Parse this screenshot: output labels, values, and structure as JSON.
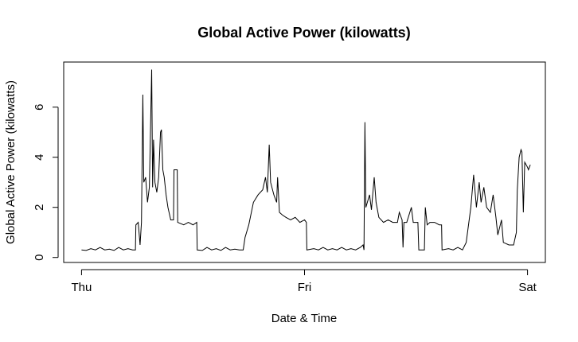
{
  "chart_data": {
    "type": "line",
    "title": "Global Active Power (kilowatts)",
    "x_label": "Date & Time",
    "y_label": "Global Active Power (kilowatts)",
    "color": "#000000",
    "xlim": [
      -1.92,
      49.92
    ],
    "xticks": [
      {
        "value": 0,
        "label": "Thu"
      },
      {
        "value": 24,
        "label": "Fri"
      },
      {
        "value": 48,
        "label": "Sat"
      }
    ],
    "ylim": [
      -0.2,
      7.8
    ],
    "yticks": [
      0,
      2,
      4,
      6
    ],
    "x": [
      0,
      0.5,
      1,
      1.5,
      2,
      2.5,
      3,
      3.5,
      4,
      4.5,
      5,
      5.5,
      5.8,
      5.85,
      6.1,
      6.3,
      6.45,
      6.6,
      6.7,
      6.9,
      7.1,
      7.3,
      7.55,
      7.65,
      7.75,
      7.9,
      8.1,
      8.3,
      8.5,
      8.6,
      8.75,
      8.9,
      9.1,
      9.3,
      9.6,
      9.9,
      9.95,
      10.3,
      10.35,
      11,
      11.5,
      12,
      12.4,
      12.45,
      13,
      13.5,
      14,
      14.5,
      15,
      15.5,
      16,
      16.5,
      17,
      17.4,
      17.6,
      18,
      18.5,
      19,
      19.5,
      19.8,
      20,
      20.2,
      20.35,
      20.7,
      21,
      21.1,
      21.3,
      21.6,
      22,
      22.5,
      23,
      23.5,
      24,
      24.2,
      24.25,
      25,
      25.5,
      26,
      26.5,
      27,
      27.5,
      28,
      28.5,
      29,
      29.5,
      30,
      30.3,
      30.4,
      30.5,
      30.6,
      31,
      31.2,
      31.5,
      31.7,
      32,
      32.5,
      33,
      33.5,
      34,
      34.2,
      34.5,
      34.6,
      34.7,
      35,
      35.5,
      35.7,
      36.2,
      36.3,
      36.9,
      37,
      37.2,
      37.5,
      38,
      38.5,
      38.75,
      38.8,
      39.5,
      40,
      40.5,
      41,
      41.4,
      41.9,
      42.2,
      42.5,
      42.8,
      43,
      43.3,
      43.6,
      44,
      44.3,
      44.6,
      44.8,
      45.2,
      45.4,
      46,
      46.5,
      46.8,
      46.9,
      47.1,
      47.3,
      47.4,
      47.55,
      47.7,
      48,
      48.1,
      48.3
    ],
    "values": [
      0.3,
      0.28,
      0.35,
      0.3,
      0.4,
      0.3,
      0.33,
      0.28,
      0.4,
      0.3,
      0.35,
      0.3,
      0.3,
      1.3,
      1.4,
      0.5,
      1.4,
      6.5,
      3.0,
      3.2,
      2.2,
      2.8,
      7.5,
      2.8,
      4.7,
      3.0,
      2.6,
      3.2,
      5.0,
      5.1,
      3.5,
      3.2,
      2.5,
      2.0,
      1.5,
      1.5,
      3.5,
      3.5,
      1.4,
      1.3,
      1.4,
      1.3,
      1.4,
      0.3,
      0.28,
      0.4,
      0.3,
      0.35,
      0.28,
      0.4,
      0.3,
      0.33,
      0.3,
      0.3,
      0.8,
      1.3,
      2.2,
      2.5,
      2.7,
      3.2,
      2.6,
      4.5,
      3.0,
      2.5,
      2.2,
      3.2,
      1.8,
      1.7,
      1.6,
      1.5,
      1.6,
      1.4,
      1.5,
      1.4,
      0.3,
      0.35,
      0.3,
      0.4,
      0.3,
      0.35,
      0.3,
      0.4,
      0.3,
      0.35,
      0.3,
      0.4,
      0.5,
      0.3,
      5.4,
      2.0,
      2.5,
      1.9,
      3.2,
      2.2,
      1.6,
      1.4,
      1.5,
      1.4,
      1.4,
      1.8,
      1.5,
      0.4,
      1.4,
      1.4,
      2.0,
      1.4,
      1.4,
      0.3,
      0.3,
      2.0,
      1.3,
      1.4,
      1.4,
      1.3,
      1.3,
      0.3,
      0.35,
      0.3,
      0.4,
      0.3,
      0.6,
      2.0,
      3.3,
      2.0,
      3.0,
      2.2,
      2.8,
      2.0,
      1.8,
      2.5,
      1.6,
      0.9,
      1.5,
      0.6,
      0.5,
      0.5,
      1.0,
      2.7,
      4.0,
      4.3,
      4.2,
      1.8,
      3.8,
      3.6,
      3.5,
      3.7
    ]
  }
}
